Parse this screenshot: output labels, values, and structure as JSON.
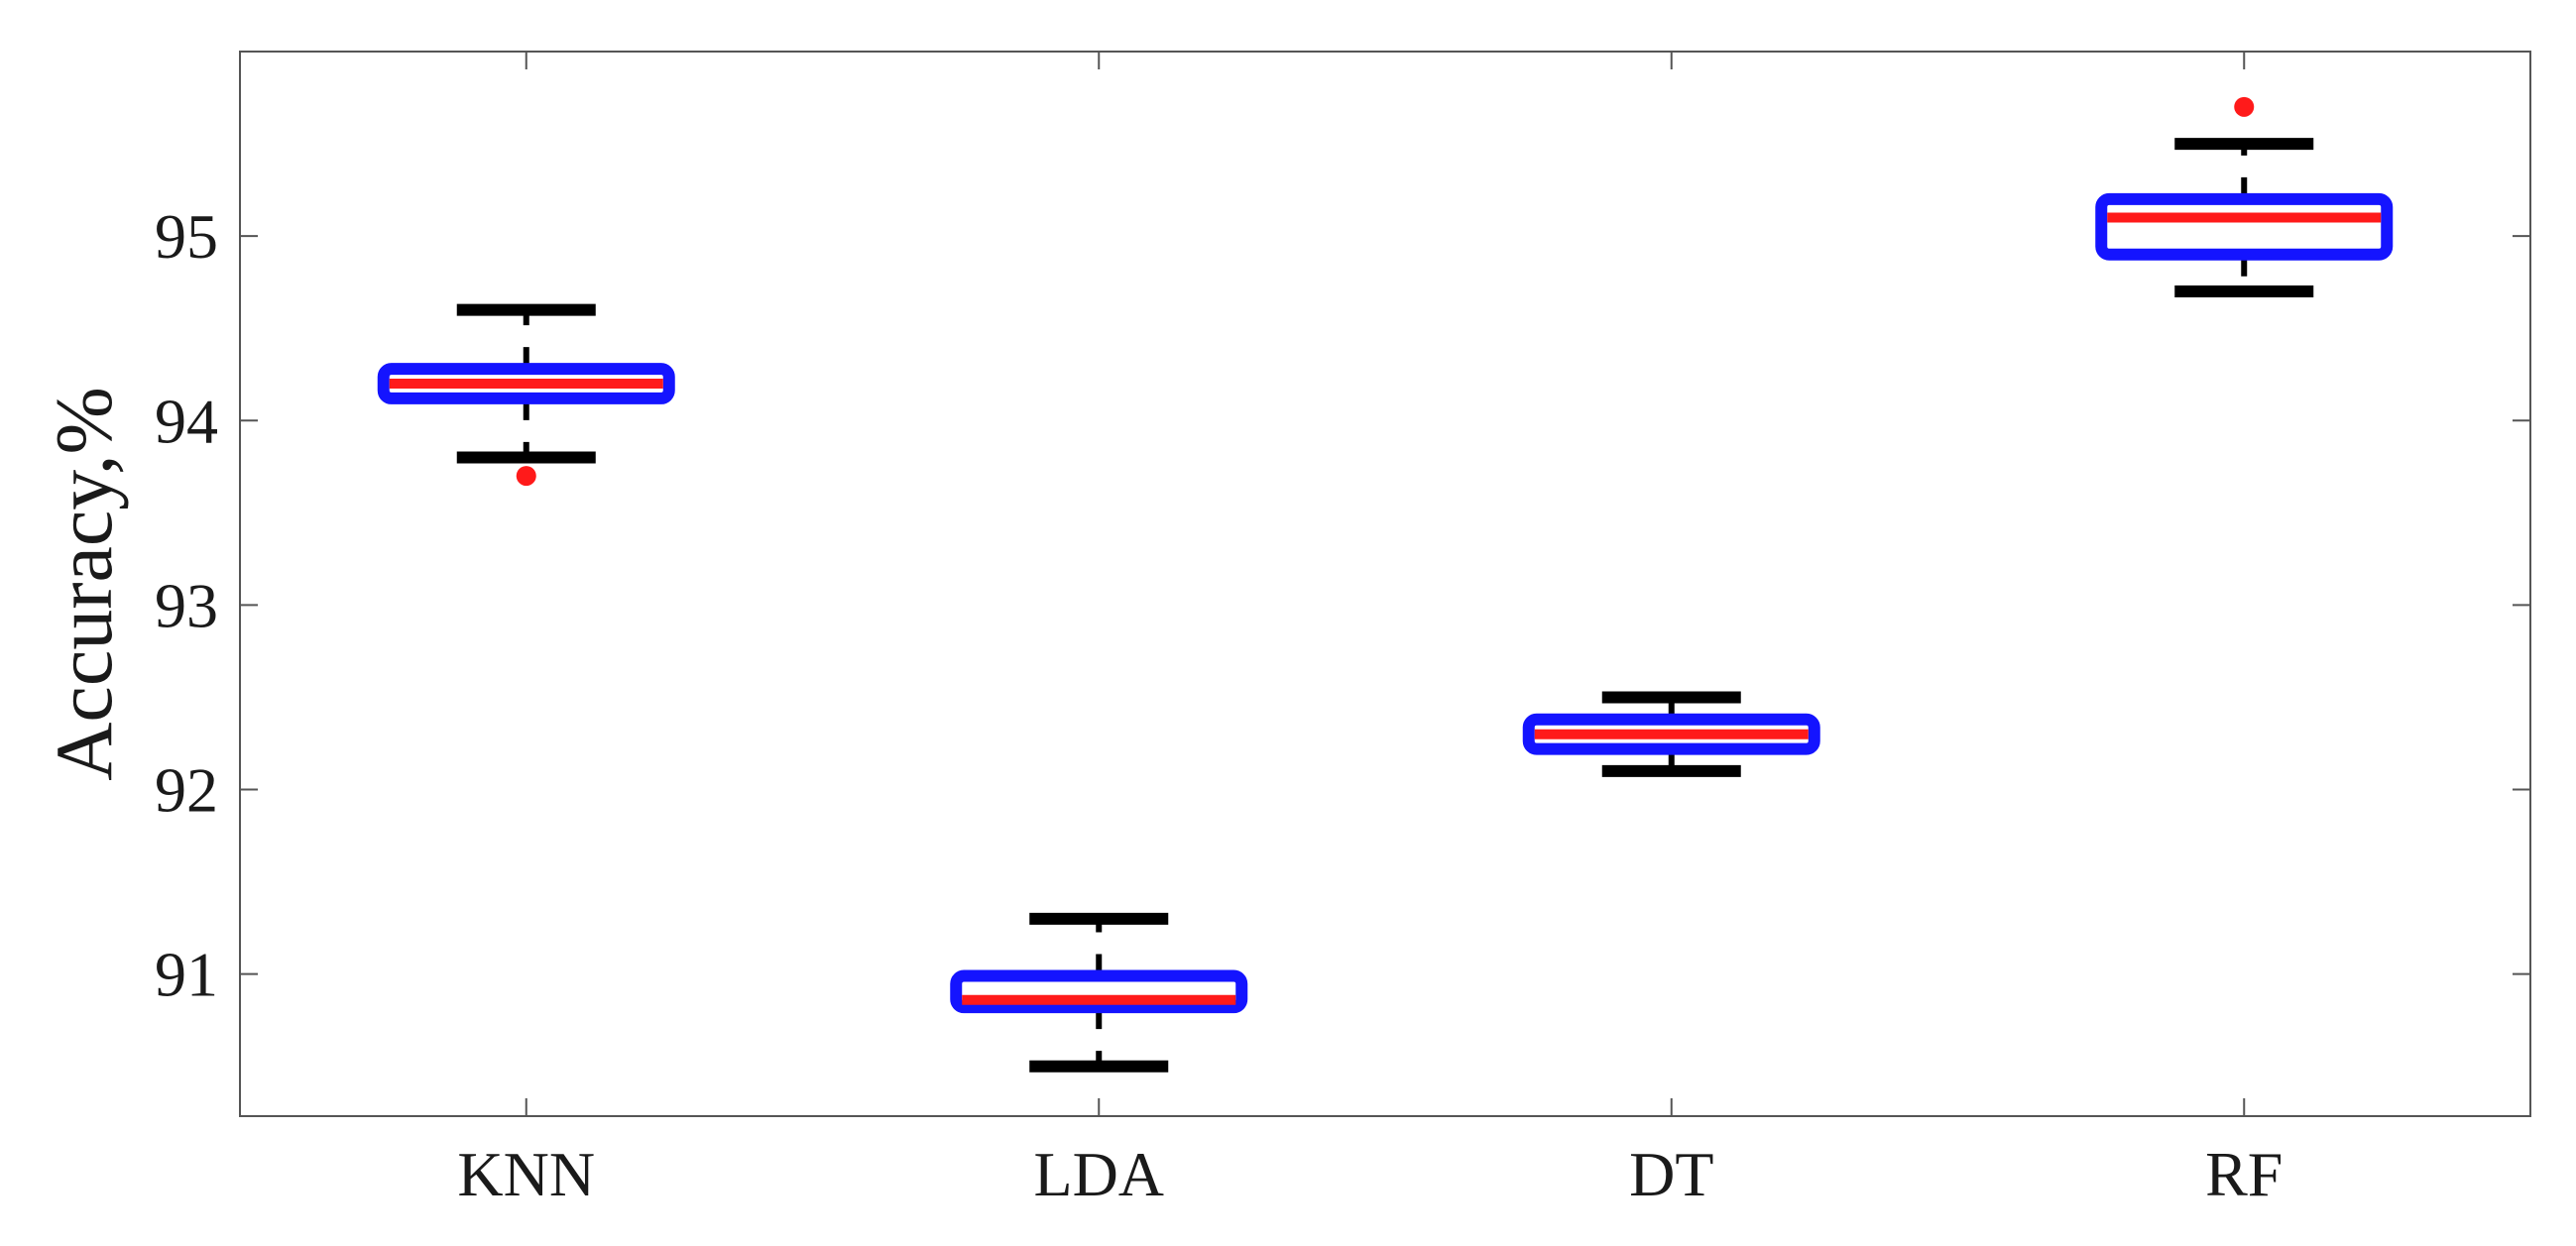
{
  "chart_data": {
    "type": "box",
    "title": "",
    "xlabel": "",
    "ylabel": "Accuracy,%",
    "ylim": [
      90.23,
      96.0
    ],
    "yticks": [
      91,
      92,
      93,
      94,
      95
    ],
    "grid": false,
    "categories": [
      "KNN",
      "LDA",
      "DT",
      "RF"
    ],
    "boxes": [
      {
        "category": "KNN",
        "whisker_low": 93.8,
        "q1": 94.12,
        "median": 94.2,
        "q3": 94.28,
        "whisker_high": 94.6,
        "outliers": [
          93.7
        ]
      },
      {
        "category": "LDA",
        "whisker_low": 90.5,
        "q1": 90.82,
        "median": 90.86,
        "q3": 90.99,
        "whisker_high": 91.3,
        "outliers": []
      },
      {
        "category": "DT",
        "whisker_low": 92.1,
        "q1": 92.22,
        "median": 92.3,
        "q3": 92.38,
        "whisker_high": 92.5,
        "outliers": []
      },
      {
        "category": "RF",
        "whisker_low": 94.7,
        "q1": 94.9,
        "median": 95.1,
        "q3": 95.2,
        "whisker_high": 95.5,
        "outliers": [
          95.7
        ]
      }
    ],
    "colors": {
      "box": "#1414ff",
      "median": "#ff1a1a",
      "whisker": "#000000",
      "outlier": "#ff1a1a",
      "axis": "#555555"
    }
  }
}
